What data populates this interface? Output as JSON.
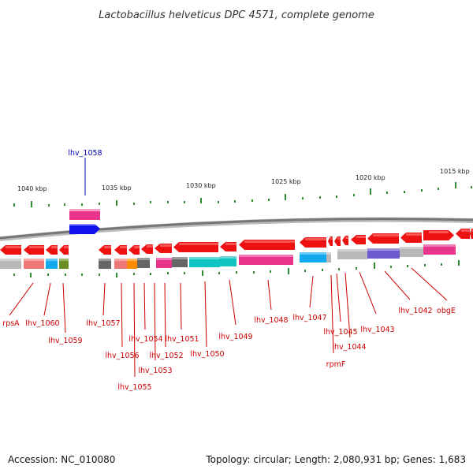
{
  "title": "Lactobacillus helveticus DPC 4571, complete genome",
  "footer": {
    "accession": "Accession: NC_010080",
    "topology": "Topology: circular; Length: 2,080,931 bp; Genes: 1,683"
  },
  "colors": {
    "forward_arrow": "#ee1111",
    "tick": "#2e8b2e",
    "label_red": "#cc0000",
    "label_blue": "#0000bb",
    "track_gray": "#888888"
  },
  "kbp_labels": [
    "1040 kbp",
    "1035 kbp",
    "1030 kbp",
    "1025 kbp",
    "1020 kbp",
    "1015 kbp"
  ],
  "highlighted_gene": "lhv_1058",
  "gene_labels": [
    "rpsA",
    "lhv_1060",
    "lhv_1059",
    "lhv_1057",
    "lhv_1056",
    "lhv_1055",
    "lhv_1054",
    "lhv_1053",
    "lhv_1052",
    "lhv_1051",
    "lhv_1050",
    "lhv_1049",
    "lhv_1048",
    "lhv_1047",
    "rpmF",
    "lhv_1045",
    "lhv_1044",
    "lhv_1043",
    "lhv_1042",
    "obgE"
  ]
}
